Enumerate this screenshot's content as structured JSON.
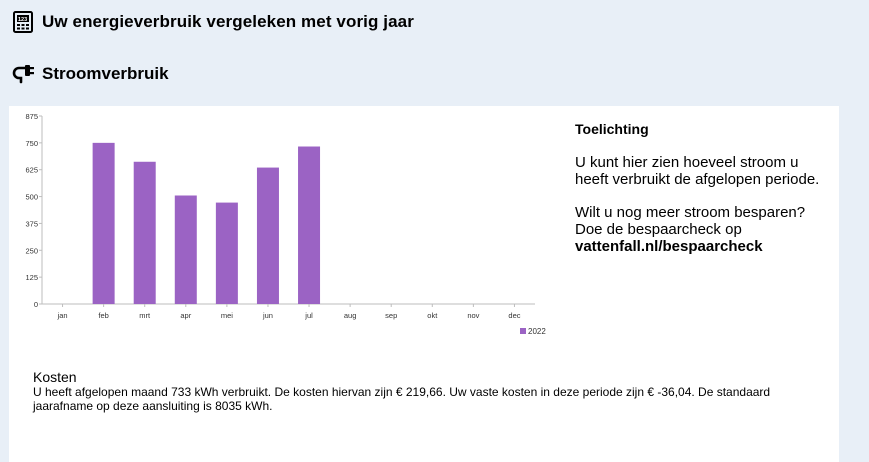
{
  "header": {
    "title": "Uw energieverbruik vergeleken met vorig jaar",
    "icon": "meter-icon"
  },
  "section": {
    "title": "Stroomverbruik",
    "icon": "plug-icon"
  },
  "colors": {
    "background": "#e8eff7",
    "bar": "#9b63c4"
  },
  "chart_data": {
    "type": "bar",
    "categories": [
      "jan",
      "feb",
      "mrt",
      "apr",
      "mei",
      "jun",
      "jul",
      "aug",
      "sep",
      "okt",
      "nov",
      "dec"
    ],
    "series": [
      {
        "name": "2022",
        "values": [
          null,
          750,
          662,
          505,
          472,
          635,
          733,
          null,
          null,
          null,
          null,
          null
        ]
      }
    ],
    "yticks": [
      0,
      125,
      250,
      375,
      500,
      625,
      750,
      875
    ],
    "ylim": [
      0,
      875
    ],
    "legend_position": "bottom-right",
    "grid": false
  },
  "info": {
    "title": "Toelichting",
    "paragraph1": "U kunt hier zien hoeveel stroom u heeft verbruikt de afgelopen periode.",
    "paragraph2": "Wilt u nog meer stroom besparen? Doe de bespaarcheck op",
    "link": "vattenfall.nl/bespaarcheck"
  },
  "costs": {
    "title": "Kosten",
    "text": "U heeft afgelopen maand 733 kWh verbruikt. De kosten hiervan zijn € 219,66. Uw vaste kosten in deze periode zijn € -36,04. De standaard jaarafname op deze aansluiting is 8035 kWh."
  }
}
